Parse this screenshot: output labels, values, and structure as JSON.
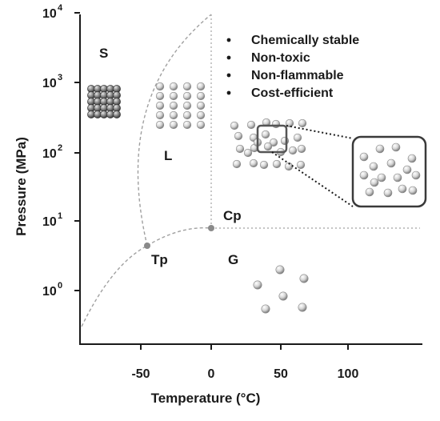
{
  "axes": {
    "x_title": "Temperature (°C)",
    "y_title": "Pressure (MPa)",
    "x_ticks": [
      "-50",
      "0",
      "50",
      "100"
    ],
    "y_ticks": [
      {
        "base": "10",
        "exp": "0"
      },
      {
        "base": "10",
        "exp": "1"
      },
      {
        "base": "10",
        "exp": "2"
      },
      {
        "base": "10",
        "exp": "3"
      },
      {
        "base": "10",
        "exp": "4"
      }
    ]
  },
  "phases": {
    "solid": "S",
    "liquid": "L",
    "gas": "G",
    "triple_point": "Tp",
    "critical_point": "Cp"
  },
  "properties": [
    "Chemically stable",
    "Non-toxic",
    "Non-flammable",
    "Cost-efficient"
  ],
  "colors": {
    "axis": "#1a1a1a",
    "curve": "#9a9a9a",
    "point": "#8a8a8a",
    "sphere_light": "#f2f2f2",
    "sphere_dark": "#7a7a7a",
    "solid_sphere_dark": "#3a3a3a"
  }
}
